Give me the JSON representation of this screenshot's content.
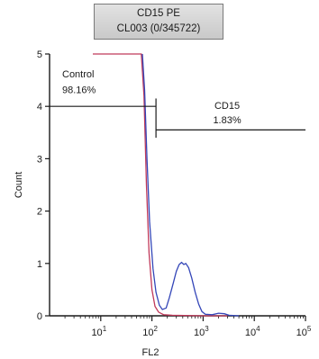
{
  "header": {
    "line1": "CD15 PE",
    "line2": "CL003 (0/345722)"
  },
  "chart_data": {
    "type": "line",
    "xlabel": "FL2",
    "ylabel": "Count",
    "xscale": "log",
    "xlim": [
      1,
      100000
    ],
    "ylim": [
      0,
      5
    ],
    "x_ticks": [
      {
        "label_base": "10",
        "label_exp": "1",
        "value": 10
      },
      {
        "label_base": "10",
        "label_exp": "2",
        "value": 100
      },
      {
        "label_base": "10",
        "label_exp": "3",
        "value": 1000
      },
      {
        "label_base": "10",
        "label_exp": "4",
        "value": 10000
      },
      {
        "label_base": "10",
        "label_exp": "5",
        "value": 100000
      }
    ],
    "y_ticks": [
      {
        "label": "0",
        "value": 0
      },
      {
        "label": "1",
        "value": 1
      },
      {
        "label": "2",
        "value": 2
      },
      {
        "label": "3",
        "value": 3
      },
      {
        "label": "4",
        "value": 4
      },
      {
        "label": "5",
        "value": 5
      }
    ],
    "series": [
      {
        "color": "#c0395a",
        "points": [
          [
            7,
            5
          ],
          [
            62,
            5
          ],
          [
            70,
            4.2
          ],
          [
            78,
            2.5
          ],
          [
            88,
            1.2
          ],
          [
            100,
            0.5
          ],
          [
            115,
            0.18
          ],
          [
            135,
            0.07
          ],
          [
            170,
            0.02
          ],
          [
            250,
            0.01
          ],
          [
            1000,
            0.0
          ],
          [
            3000,
            0.0
          ]
        ]
      },
      {
        "color": "#3446b8",
        "points": [
          [
            65,
            5
          ],
          [
            72,
            4.3
          ],
          [
            80,
            3.0
          ],
          [
            90,
            1.8
          ],
          [
            105,
            0.9
          ],
          [
            120,
            0.45
          ],
          [
            140,
            0.2
          ],
          [
            160,
            0.12
          ],
          [
            190,
            0.15
          ],
          [
            220,
            0.35
          ],
          [
            260,
            0.62
          ],
          [
            300,
            0.85
          ],
          [
            340,
            0.98
          ],
          [
            380,
            1.02
          ],
          [
            420,
            0.98
          ],
          [
            460,
            1.0
          ],
          [
            520,
            0.92
          ],
          [
            600,
            0.72
          ],
          [
            700,
            0.45
          ],
          [
            820,
            0.22
          ],
          [
            950,
            0.08
          ],
          [
            1100,
            0.03
          ],
          [
            1500,
            0.02
          ],
          [
            2000,
            0.05
          ],
          [
            2600,
            0.04
          ],
          [
            3200,
            0.01
          ],
          [
            5000,
            0.0
          ]
        ]
      }
    ],
    "regions": [
      {
        "name": "Control",
        "value_label": "98.16%",
        "x_range": [
          1,
          120
        ],
        "y": 4.0
      },
      {
        "name": "CD15",
        "value_label": "1.83%",
        "x_range": [
          120,
          100000
        ],
        "y": 3.55
      }
    ]
  }
}
